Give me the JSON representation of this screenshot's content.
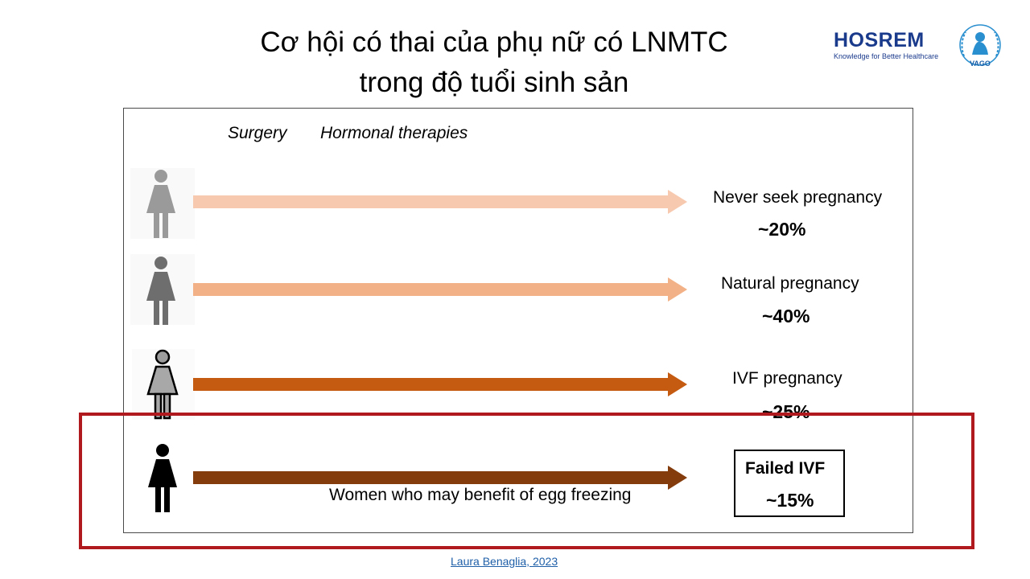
{
  "title_line1": "Cơ hội có thai của phụ nữ có LNMTC",
  "title_line2": "trong độ tuổi sinh sản",
  "logos": {
    "hosrem_name": "HOSREM",
    "hosrem_tagline": "Knowledge for Better Healthcare",
    "vago_name": "VAGO"
  },
  "column_labels": {
    "surgery": "Surgery",
    "hormonal": "Hormonal therapies"
  },
  "rows": [
    {
      "outcome": "Never seek pregnancy",
      "percent": "~20%",
      "arrow_color": "#f7c9ae",
      "figure_color": "#9a9a9a"
    },
    {
      "outcome": "Natural pregnancy",
      "percent": "~40%",
      "arrow_color": "#f2b186",
      "figure_color": "#6e6e6e"
    },
    {
      "outcome": "IVF pregnancy",
      "percent": "~25%",
      "arrow_color": "#c55a11",
      "figure_color": "#9c9c9c"
    },
    {
      "outcome": "Failed IVF",
      "percent": "~15%",
      "arrow_color": "#843c0c",
      "figure_color": "#000000"
    }
  ],
  "benefit_text": "Women who may benefit of egg freezing",
  "highlight_color": "#b0191e",
  "source": "Laura Benaglia, 2023"
}
